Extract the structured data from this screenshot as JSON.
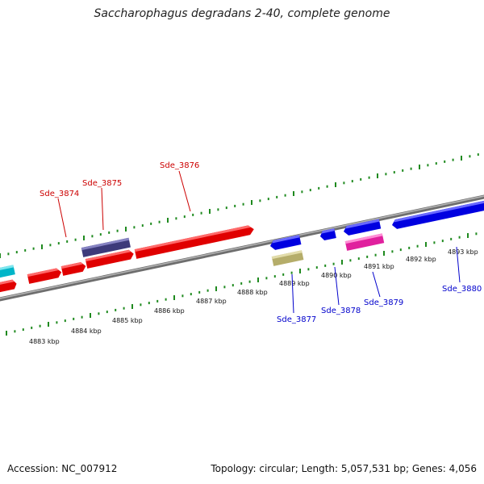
{
  "title": "Saccharophagus degradans 2-40, complete genome",
  "footer": {
    "accession": "Accession: NC_007912",
    "summary": "Topology: circular; Length: 5,057,531 bp; Genes: 4,056"
  },
  "colors": {
    "backbone": "#8c8c8c",
    "tick": "#1f8a1f",
    "label_top": "#cc0000",
    "label_bottom": "#0000cc"
  },
  "kbp_labels": [
    "4883 kbp",
    "4884 kbp",
    "4885 kbp",
    "4886 kbp",
    "4887 kbp",
    "4888 kbp",
    "4889 kbp",
    "4890 kbp",
    "4891 kbp",
    "4892 kbp",
    "4893 kbp"
  ],
  "gene_labels": {
    "Sde_3874": "Sde_3874",
    "Sde_3875": "Sde_3875",
    "Sde_3876": "Sde_3876",
    "Sde_3877": "Sde_3877",
    "Sde_3878": "Sde_3878",
    "Sde_3879": "Sde_3879",
    "Sde_3880": "Sde_3880"
  }
}
